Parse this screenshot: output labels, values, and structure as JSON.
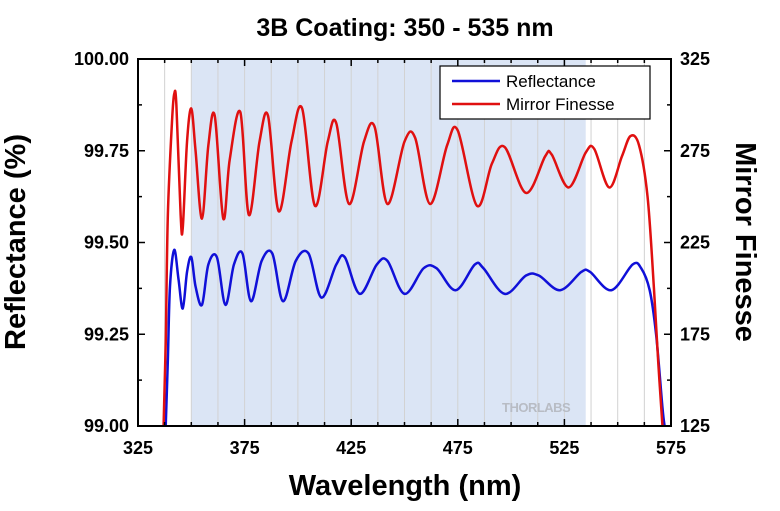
{
  "chart_data": {
    "type": "line",
    "title": "3B Coating: 350 - 535 nm",
    "xlabel": "Wavelength (nm)",
    "ylabel": "Reflectance (%)",
    "y2label": "Mirror Finesse",
    "xlim": [
      325,
      575
    ],
    "ylim": [
      99.0,
      100.0
    ],
    "y2lim": [
      125,
      325
    ],
    "xticks": [
      "325",
      "375",
      "425",
      "475",
      "525",
      "575"
    ],
    "yticks": [
      "99.00",
      "99.25",
      "99.50",
      "99.75",
      "100.00"
    ],
    "y2ticks": [
      "125",
      "175",
      "225",
      "275",
      "325"
    ],
    "grid": true,
    "legend_position": "top-right",
    "shaded_band": {
      "x_from": 350,
      "x_to": 535,
      "color": "#dbe5f5"
    },
    "watermark": "THORLABS",
    "series": [
      {
        "name": "Reflectance",
        "axis": "left",
        "color": "#1010d8",
        "points": [
          [
            338,
            99.0
          ],
          [
            339,
            99.18
          ],
          [
            340,
            99.38
          ],
          [
            342,
            99.48
          ],
          [
            344,
            99.4
          ],
          [
            346,
            99.32
          ],
          [
            348,
            99.42
          ],
          [
            350,
            99.46
          ],
          [
            352,
            99.38
          ],
          [
            355,
            99.33
          ],
          [
            358,
            99.44
          ],
          [
            362,
            99.46
          ],
          [
            366,
            99.33
          ],
          [
            370,
            99.44
          ],
          [
            374,
            99.47
          ],
          [
            378,
            99.34
          ],
          [
            383,
            99.45
          ],
          [
            388,
            99.47
          ],
          [
            393,
            99.34
          ],
          [
            399,
            99.45
          ],
          [
            405,
            99.47
          ],
          [
            411,
            99.35
          ],
          [
            418,
            99.44
          ],
          [
            422,
            99.46
          ],
          [
            429,
            99.36
          ],
          [
            437,
            99.44
          ],
          [
            442,
            99.45
          ],
          [
            450,
            99.36
          ],
          [
            459,
            99.43
          ],
          [
            465,
            99.43
          ],
          [
            474,
            99.37
          ],
          [
            483,
            99.44
          ],
          [
            487,
            99.43
          ],
          [
            497,
            99.36
          ],
          [
            507,
            99.41
          ],
          [
            513,
            99.41
          ],
          [
            523,
            99.37
          ],
          [
            533,
            99.42
          ],
          [
            537,
            99.42
          ],
          [
            547,
            99.37
          ],
          [
            557,
            99.44
          ],
          [
            561,
            99.43
          ],
          [
            565,
            99.37
          ],
          [
            568,
            99.25
          ],
          [
            571,
            99.05
          ],
          [
            572,
            99.0
          ]
        ]
      },
      {
        "name": "Mirror Finesse",
        "axis": "right",
        "color": "#e01010",
        "points": [
          [
            337,
            125
          ],
          [
            338,
            170
          ],
          [
            339,
            240
          ],
          [
            341,
            292
          ],
          [
            342,
            306
          ],
          [
            343,
            300
          ],
          [
            345,
            240
          ],
          [
            346,
            233
          ],
          [
            348,
            280
          ],
          [
            350,
            298
          ],
          [
            352,
            275
          ],
          [
            355,
            238
          ],
          [
            358,
            278
          ],
          [
            361,
            294
          ],
          [
            365,
            238
          ],
          [
            368,
            270
          ],
          [
            373,
            296
          ],
          [
            377,
            240
          ],
          [
            382,
            280
          ],
          [
            386,
            294
          ],
          [
            391,
            242
          ],
          [
            397,
            280
          ],
          [
            402,
            298
          ],
          [
            408,
            245
          ],
          [
            414,
            280
          ],
          [
            418,
            290
          ],
          [
            424,
            246
          ],
          [
            431,
            280
          ],
          [
            436,
            288
          ],
          [
            442,
            246
          ],
          [
            450,
            280
          ],
          [
            455,
            282
          ],
          [
            462,
            246
          ],
          [
            470,
            278
          ],
          [
            475,
            286
          ],
          [
            484,
            245
          ],
          [
            491,
            268
          ],
          [
            497,
            277
          ],
          [
            507,
            252
          ],
          [
            516,
            272
          ],
          [
            519,
            273
          ],
          [
            527,
            255
          ],
          [
            535,
            274
          ],
          [
            539,
            276
          ],
          [
            546,
            255
          ],
          [
            552,
            272
          ],
          [
            556,
            283
          ],
          [
            560,
            278
          ],
          [
            564,
            250
          ],
          [
            567,
            200
          ],
          [
            569,
            160
          ],
          [
            571,
            125
          ]
        ]
      }
    ]
  }
}
